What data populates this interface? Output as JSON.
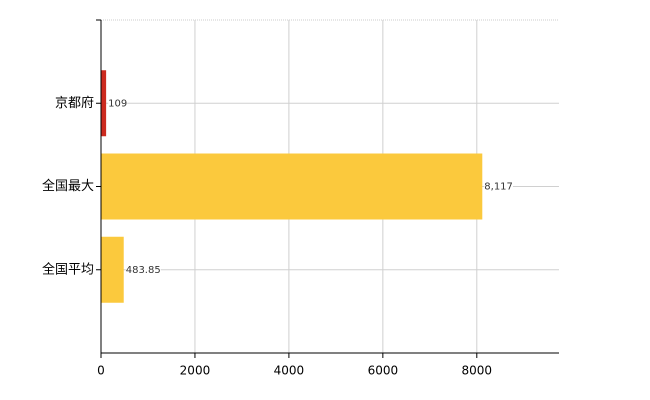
{
  "chart_data": {
    "type": "bar",
    "orientation": "horizontal",
    "categories": [
      "京都府",
      "全国最大",
      "全国平均"
    ],
    "values": [
      109,
      8117,
      483.85
    ],
    "value_labels": [
      "109",
      "8,117",
      "483.85"
    ],
    "colors": [
      "#cc2a1f",
      "#fbc93d",
      "#fbc93d"
    ],
    "xlim": [
      0,
      9750
    ],
    "xticks": [
      0,
      2000,
      4000,
      6000,
      8000
    ],
    "grid": true
  }
}
